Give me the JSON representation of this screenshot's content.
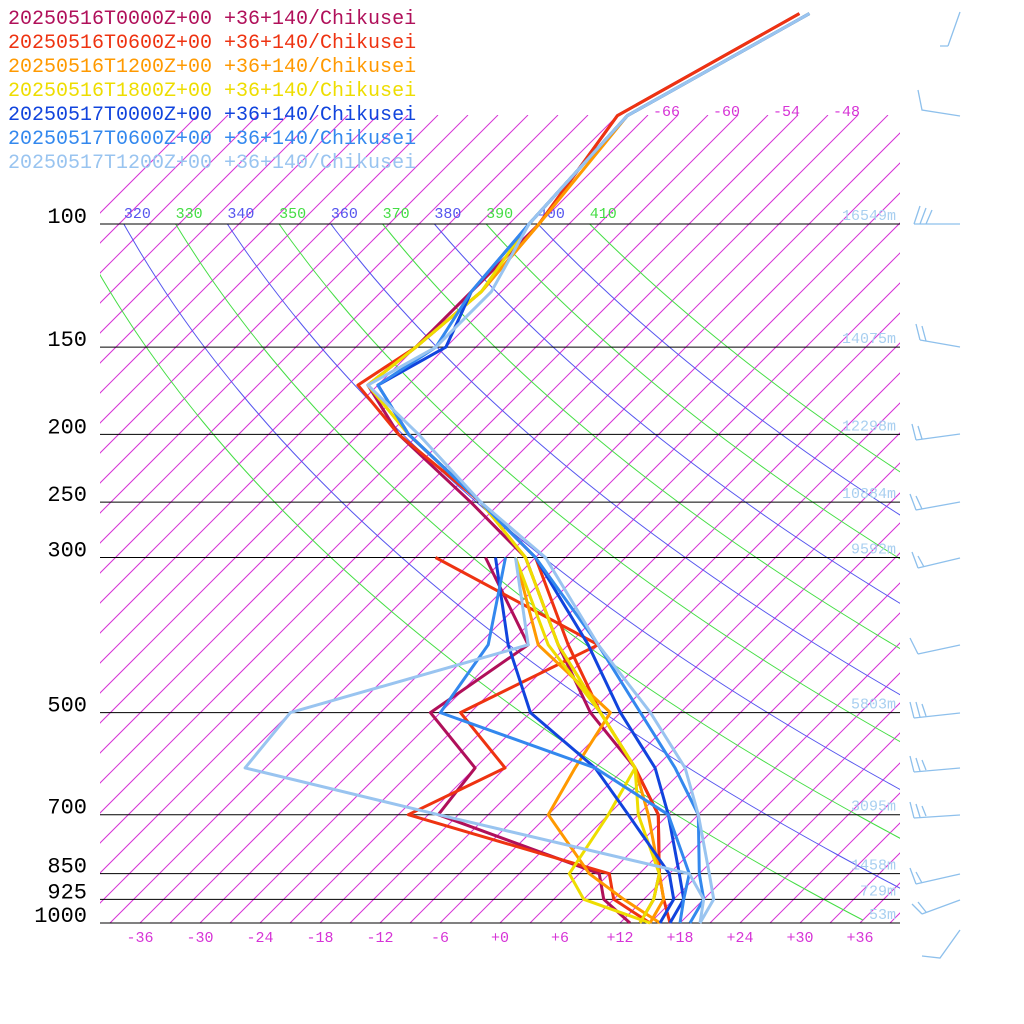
{
  "chart_data": {
    "type": "skewt",
    "levels": [
      1000,
      925,
      850,
      700,
      600,
      500,
      400,
      300,
      250,
      200,
      170,
      150,
      125,
      100,
      70,
      50
    ],
    "series": [
      {
        "name": "20250516T0000Z+00 +36+140/Chikusei",
        "color": "#b0105a",
        "temperature": [
          14,
          13,
          11,
          5,
          -2,
          -12,
          -22,
          -34,
          -45,
          -59,
          -67,
          -66,
          -66,
          -66,
          -69,
          -61
        ],
        "dewpoint": [
          13,
          8,
          5,
          -17,
          -18,
          -28,
          -25,
          -38,
          null,
          null,
          null,
          null,
          null,
          null,
          null,
          null
        ]
      },
      {
        "name": "20250516T0600Z+00 +36+140/Chikusei",
        "color": "#ee3311",
        "temperature": [
          17,
          14,
          11,
          5,
          -2,
          -11,
          -21,
          -33,
          -44,
          -59,
          -68,
          -66,
          -65,
          -66,
          -69,
          -61
        ],
        "dewpoint": [
          15,
          9,
          6,
          -20,
          -15,
          -25,
          -18,
          -43,
          null,
          null,
          null,
          null,
          null,
          null,
          null,
          null
        ]
      },
      {
        "name": "20250516T1200Z+00 +36+140/Chikusei",
        "color": "#ff9900",
        "temperature": [
          15,
          14,
          11,
          4,
          -2,
          -11,
          -22,
          -34,
          -44,
          -58,
          -67,
          -66,
          -65,
          -66,
          -68,
          -60
        ],
        "dewpoint": [
          16,
          10,
          4,
          -6,
          -8,
          -10,
          -24,
          -35,
          null,
          null,
          null,
          null,
          null,
          null,
          null,
          null
        ]
      },
      {
        "name": "20250516T1800Z+00 +36+140/Chikusei",
        "color": "#eedd00",
        "temperature": [
          14,
          13,
          11,
          3,
          -2,
          -11,
          -22,
          -34,
          -44,
          -58,
          -67,
          -66,
          -65,
          -67,
          -68,
          -60
        ],
        "dewpoint": [
          15,
          6,
          2,
          0,
          -2,
          -11,
          -23,
          -35,
          null,
          null,
          null,
          null,
          null,
          null,
          null,
          null
        ]
      },
      {
        "name": "20250517T0000Z+00 +36+140/Chikusei",
        "color": "#1144dd",
        "temperature": [
          17,
          16,
          13,
          6,
          0,
          -9,
          -19,
          -33,
          -44,
          -58,
          -66,
          -63,
          -66,
          -67,
          -68,
          -60
        ],
        "dewpoint": [
          16,
          15,
          12,
          2,
          -6,
          -18,
          -27,
          -37,
          null,
          null,
          null,
          null,
          null,
          null,
          null,
          null
        ]
      },
      {
        "name": "20250517T0600Z+00 +36+140/Chikusei",
        "color": "#3388ee",
        "temperature": [
          19,
          18,
          15,
          9,
          2,
          -7,
          -18,
          -33,
          -44,
          -58,
          -66,
          -64,
          -66,
          -67,
          -68,
          -60
        ],
        "dewpoint": [
          18,
          16,
          14,
          6,
          -6,
          -27,
          -29,
          -36,
          null,
          null,
          null,
          null,
          null,
          null,
          null,
          null
        ]
      },
      {
        "name": "20250517T1200Z+00 +36+140/Chikusei",
        "color": "#99c4f0",
        "temperature": [
          20,
          19,
          16,
          9,
          3,
          -6,
          -18,
          -32,
          -44,
          -57,
          -67,
          -64,
          -64,
          -67,
          -68,
          -60
        ],
        "dewpoint": [
          20,
          18,
          14,
          -17,
          -41,
          -42,
          -25,
          -35,
          null,
          null,
          null,
          null,
          null,
          null,
          null,
          null
        ]
      }
    ],
    "isobars": [
      {
        "pressure": 100,
        "label": "100",
        "height": "16549m"
      },
      {
        "pressure": 150,
        "label": "150",
        "height": "14075m"
      },
      {
        "pressure": 200,
        "label": "200",
        "height": "12298m"
      },
      {
        "pressure": 250,
        "label": "250",
        "height": "10884m"
      },
      {
        "pressure": 300,
        "label": "300",
        "height": "9592m"
      },
      {
        "pressure": 500,
        "label": "500",
        "height": "5803m"
      },
      {
        "pressure": 700,
        "label": "700",
        "height": "3095m"
      },
      {
        "pressure": 850,
        "label": "850",
        "height": "1458m"
      },
      {
        "pressure": 925,
        "label": "925",
        "height": "729m"
      },
      {
        "pressure": 1000,
        "label": "1000",
        "height": "53m"
      }
    ],
    "xticks": [
      {
        "value": -36,
        "label": "-36"
      },
      {
        "value": -30,
        "label": "-30"
      },
      {
        "value": -24,
        "label": "-24"
      },
      {
        "value": -18,
        "label": "-18"
      },
      {
        "value": -12,
        "label": "-12"
      },
      {
        "value": -6,
        "label": "-6"
      },
      {
        "value": 0,
        "label": "+0"
      },
      {
        "value": 6,
        "label": "+6"
      },
      {
        "value": 12,
        "label": "+12"
      },
      {
        "value": 18,
        "label": "+18"
      },
      {
        "value": 24,
        "label": "+24"
      },
      {
        "value": 30,
        "label": "+30"
      },
      {
        "value": 36,
        "label": "+36"
      }
    ],
    "top_isotherm_labels": [
      -66,
      -60,
      -54,
      -48
    ],
    "isotherms": [
      -111,
      -108,
      -105,
      -102,
      -99,
      -96,
      -93,
      -90,
      -87,
      -84,
      -81,
      -78,
      -75,
      -72,
      -69,
      -66,
      -63,
      -60,
      -57,
      -54,
      -51,
      -48,
      -45,
      -42,
      -39,
      -36,
      -33,
      -30,
      -27,
      -24,
      -21,
      -18,
      -15,
      -12,
      -9,
      -6,
      -3,
      0,
      3,
      6,
      9,
      12,
      15,
      18,
      21,
      24,
      27,
      30,
      33,
      36,
      39
    ],
    "adiabats": [
      310,
      320,
      330,
      340,
      350,
      360,
      370,
      380,
      390,
      400,
      410
    ]
  }
}
